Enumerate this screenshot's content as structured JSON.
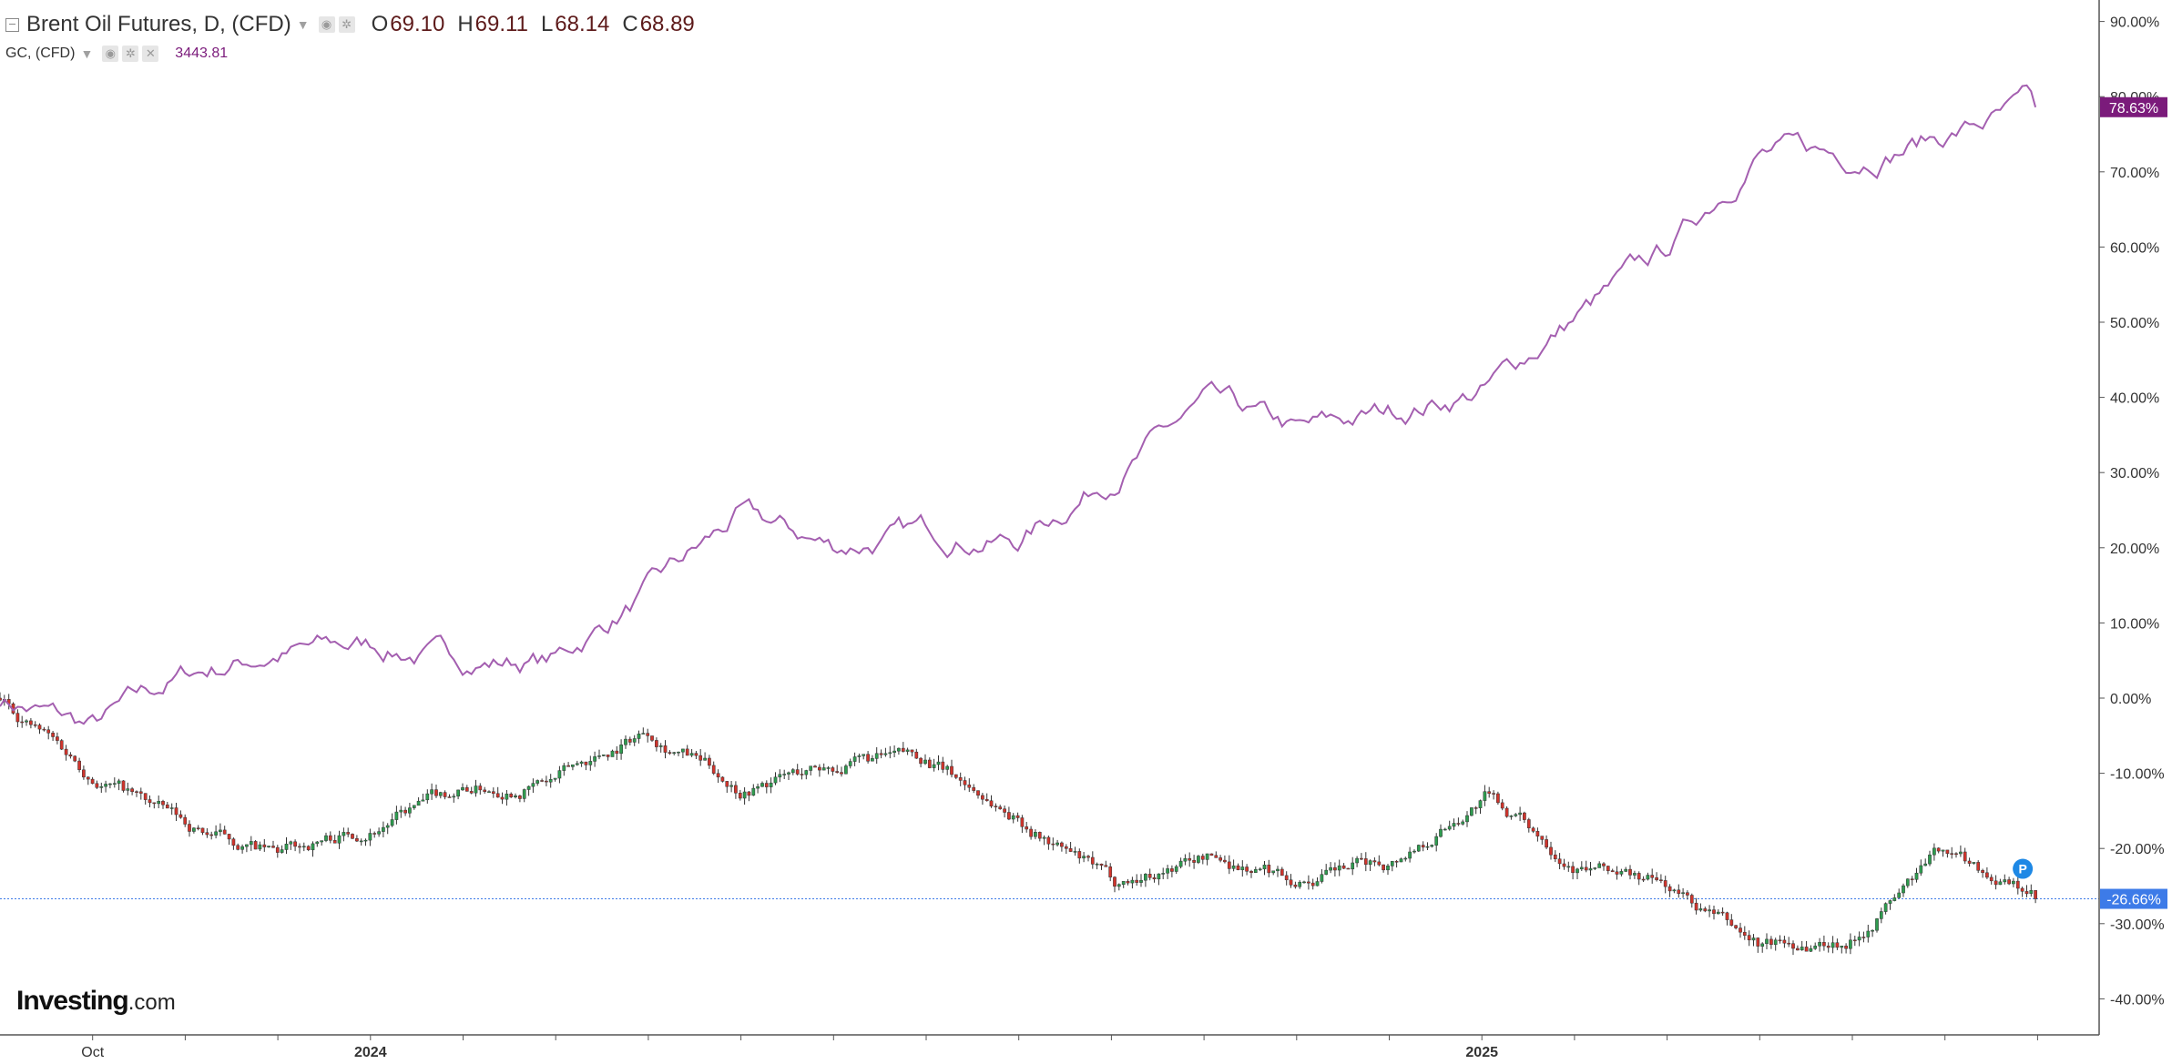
{
  "legend": {
    "main_symbol": "Brent Oil Futures, D, (CFD)",
    "ohlc": [
      {
        "label": "O",
        "value": "69.10"
      },
      {
        "label": "H",
        "value": "69.11"
      },
      {
        "label": "L",
        "value": "68.14"
      },
      {
        "label": "C",
        "value": "68.89"
      }
    ],
    "compare_symbol": "GC, (CFD)",
    "compare_value": "3443.81"
  },
  "logo": {
    "brand": "Investing",
    "suffix": ".com"
  },
  "marker_label": "P",
  "colors": {
    "gold_line": "#a45fb0",
    "gold_badge": "#7b1b7b",
    "brent_badge": "#3d7be8",
    "candle_up": "#2e9c4f",
    "candle_down": "#d0342c",
    "wick": "#333333"
  },
  "chart_data": {
    "type": "line",
    "title": "",
    "xlabel": "",
    "ylabel": "",
    "x_tick_labels": [
      "Oct",
      "2024",
      "2025"
    ],
    "y_tick_labels": [
      "90.00%",
      "80.00%",
      "70.00%",
      "60.00%",
      "50.00%",
      "40.00%",
      "30.00%",
      "20.00%",
      "10.00%",
      "0.00%",
      "-10.00%",
      "-20.00%",
      "-30.00%",
      "-40.00%"
    ],
    "ylim": [
      -40,
      90
    ],
    "y_unit": "%",
    "grid": false,
    "legend_position": "top-left",
    "last_value_labels": {
      "gold": "78.63%",
      "brent": "-26.66%"
    },
    "series": [
      {
        "name": "GC, (CFD)",
        "kind": "line",
        "x": [
          "2023-09",
          "2023-10",
          "2023-11",
          "2023-12",
          "2024-01",
          "2024-02",
          "2024-03",
          "2024-04",
          "2024-05",
          "2024-06",
          "2024-07",
          "2024-08",
          "2024-09",
          "2024-10",
          "2024-11",
          "2024-12",
          "2025-01",
          "2025-02",
          "2025-03",
          "2025-04",
          "2025-05",
          "2025-06",
          "2025-07"
        ],
        "values": [
          0,
          -4,
          3,
          6,
          7,
          5,
          5,
          14,
          24,
          20,
          22,
          21,
          30,
          39,
          35,
          38,
          41,
          51,
          59,
          73,
          72,
          75,
          78.6
        ]
      },
      {
        "name": "Brent Oil Futures, D, (CFD)",
        "kind": "candlestick",
        "x": [
          "2023-09",
          "2023-10",
          "2023-11",
          "2023-12",
          "2024-01",
          "2024-02",
          "2024-03",
          "2024-04",
          "2024-05",
          "2024-06",
          "2024-07",
          "2024-08",
          "2024-09",
          "2024-10",
          "2024-11",
          "2024-12",
          "2025-01",
          "2025-02",
          "2025-03",
          "2025-04",
          "2025-05",
          "2025-06",
          "2025-07"
        ],
        "values": [
          0,
          -10,
          -17,
          -21,
          -17,
          -12,
          -11,
          -4,
          -12,
          -9,
          -8,
          -16,
          -25,
          -21,
          -24,
          -22,
          -13,
          -22,
          -25,
          -33,
          -32,
          -20,
          -26.7
        ]
      }
    ]
  }
}
